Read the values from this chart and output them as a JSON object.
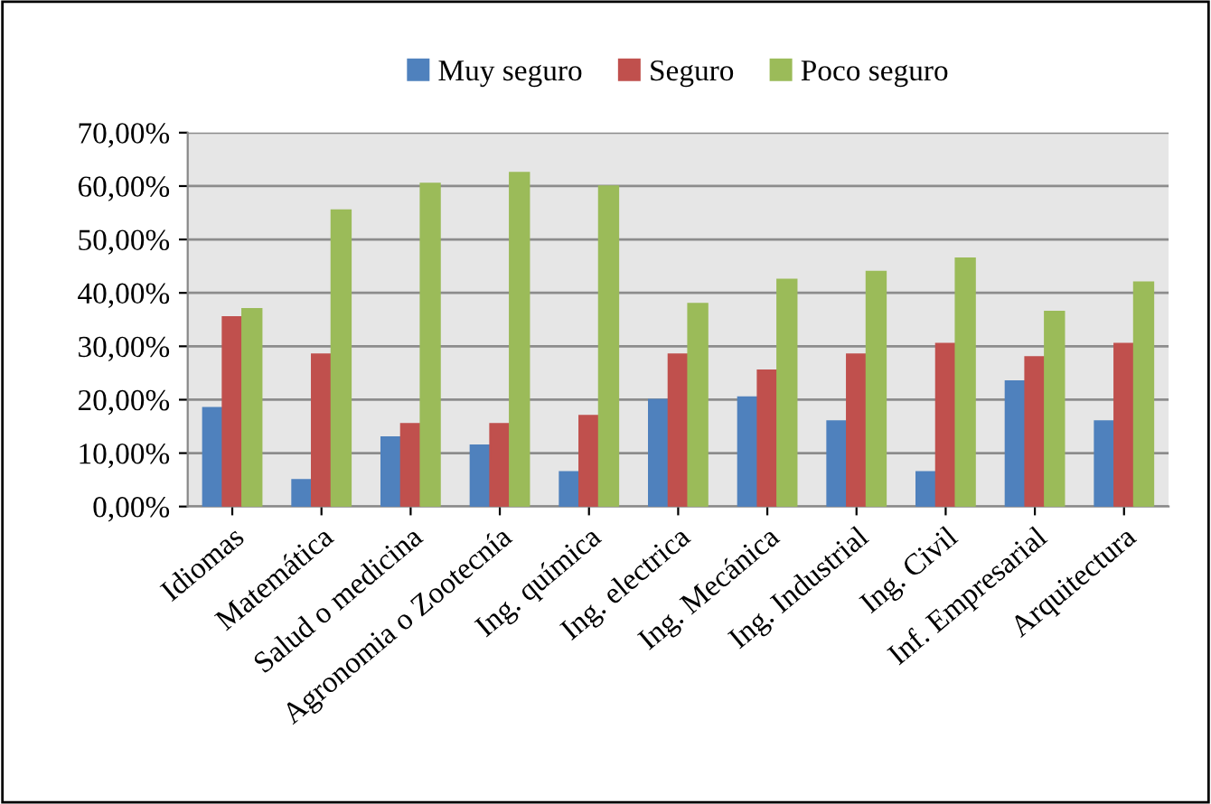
{
  "chart_data": {
    "type": "bar",
    "categories": [
      "Idiomas",
      "Matemática",
      "Salud o medicina",
      "Agronomia o Zootecnía",
      "Ing. química",
      "Ing. electrica",
      "Ing. Mecánica",
      "Ing. Industrial",
      "Ing. Civil",
      "Inf. Empresarial",
      "Arquitectura"
    ],
    "series": [
      {
        "name": "Muy seguro",
        "color": "#4f81bd",
        "values": [
          18.5,
          5,
          13,
          11.5,
          6.5,
          20,
          20.5,
          16,
          6.5,
          23.5,
          16
        ]
      },
      {
        "name": "Seguro",
        "color": "#c0504d",
        "values": [
          35.5,
          28.5,
          15.5,
          15.5,
          17,
          28.5,
          25.5,
          28.5,
          30.5,
          28,
          30.5
        ]
      },
      {
        "name": "Poco seguro",
        "color": "#9bbb59",
        "values": [
          37,
          55.5,
          60.5,
          62.5,
          60,
          38,
          42.5,
          44,
          46.5,
          36.5,
          42
        ]
      }
    ],
    "ylim": [
      0,
      70
    ],
    "yticks": [
      {
        "value": 0,
        "label": "0,00%"
      },
      {
        "value": 10,
        "label": "10,00%"
      },
      {
        "value": 20,
        "label": "20,00%"
      },
      {
        "value": 30,
        "label": "30,00%"
      },
      {
        "value": 40,
        "label": "40,00%"
      },
      {
        "value": 50,
        "label": "50,00%"
      },
      {
        "value": 60,
        "label": "60,00%"
      },
      {
        "value": 70,
        "label": "70,00%"
      }
    ],
    "grid": "y",
    "legend": "top"
  }
}
